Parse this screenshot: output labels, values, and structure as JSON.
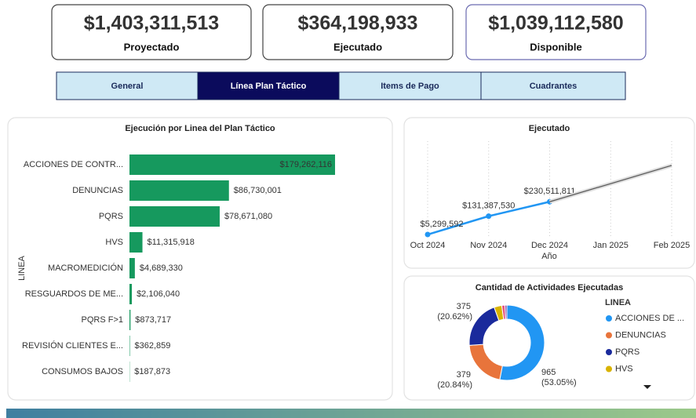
{
  "kpis": [
    {
      "value": "$1,403,311,513",
      "label": "Proyectado",
      "color": "#666666"
    },
    {
      "value": "$364,198,933",
      "label": "Ejecutado",
      "color": "#d9414f"
    },
    {
      "value": "$1,039,112,580",
      "label": "Disponible",
      "color": "#1f8a1f"
    }
  ],
  "tabs": [
    "General",
    "Línea Plan Táctico",
    "Items de Pago",
    "Cuadrantes"
  ],
  "chart_data": [
    {
      "type": "hbar",
      "title": "Ejecución por Linea del Plan Táctico",
      "y_label": "LINEA",
      "color": "#16995e",
      "categories": [
        "ACCIONES DE CONTR...",
        "DENUNCIAS",
        "PQRS",
        "HVS",
        "MACROMEDICIÓN",
        "RESGUARDOS DE ME...",
        "PQRS F>1",
        "REVISIÓN CLIENTES E...",
        "CONSUMOS BAJOS"
      ],
      "values": [
        179262116,
        86730001,
        78671080,
        11315918,
        4689330,
        2106040,
        873717,
        362859,
        187873
      ],
      "value_labels": [
        "$179,262,116",
        "$86,730,001",
        "$78,671,080",
        "$11,315,918",
        "$4,689,330",
        "$2,106,040",
        "$873,717",
        "$362,859",
        "$187,873"
      ]
    },
    {
      "type": "line",
      "title": "Ejecutado",
      "x_label": "Año",
      "categories": [
        "Oct 2024",
        "Nov 2024",
        "Dec 2024",
        "Jan 2025",
        "Feb 2025"
      ],
      "ylim": [
        0,
        620000000
      ],
      "series": [
        {
          "color": "#2196f3",
          "values": [
            5299592,
            131387530,
            230511811,
            null,
            null
          ],
          "value_labels": [
            "$5,299,592",
            "$131,387,530",
            "$230,511,811",
            null,
            null
          ]
        },
        {
          "color": "#555555",
          "values": [
            null,
            null,
            230511811,
            355000000,
            480000000
          ]
        }
      ]
    },
    {
      "type": "donut",
      "title": "Cantidad de Actividades Ejecutadas",
      "legend_title": "LINEA",
      "categories": [
        "ACCIONES DE ...",
        "DENUNCIAS",
        "PQRS",
        "HVS",
        null,
        null
      ],
      "values": [
        965,
        379,
        375,
        60,
        25,
        15
      ],
      "percent_labels": [
        "(53.05%)",
        "(20.84%)",
        "(20.62%)",
        null,
        null,
        null
      ],
      "colors": [
        "#2196f3",
        "#e8743b",
        "#1a2a9c",
        "#d9b300",
        "#e75480",
        "#7b3fa0"
      ]
    }
  ]
}
